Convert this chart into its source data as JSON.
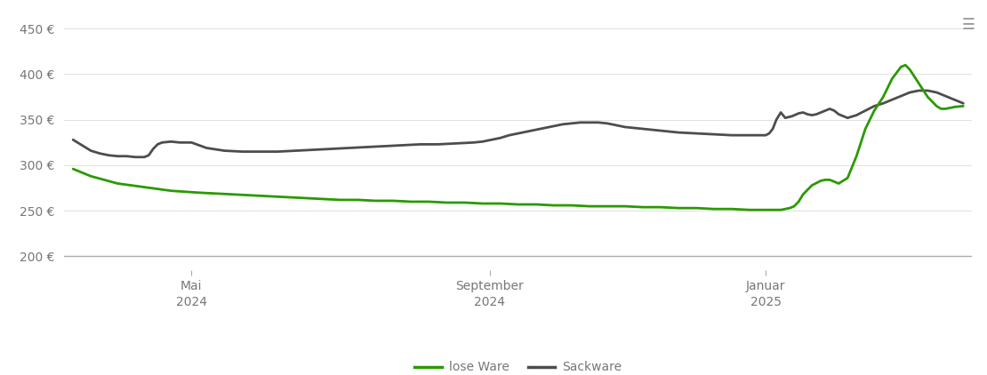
{
  "background_color": "#ffffff",
  "grid_color": "#e0e0e0",
  "axis_line_color": "#aaaaaa",
  "yticks": [
    200,
    250,
    300,
    350,
    400,
    450
  ],
  "ylabel_format": "{} €",
  "xtick_labels": [
    "Mai\n2024",
    "September\n2024",
    "Januar\n2025"
  ],
  "xtick_positions": [
    0.133,
    0.468,
    0.778
  ],
  "legend_labels": [
    "lose Ware",
    "Sackware"
  ],
  "legend_colors": [
    "#2a9a00",
    "#4d4d4d"
  ],
  "line_width": 2.0,
  "lose_ware_x": [
    0.0,
    0.01,
    0.02,
    0.035,
    0.05,
    0.065,
    0.08,
    0.095,
    0.11,
    0.125,
    0.14,
    0.16,
    0.18,
    0.2,
    0.22,
    0.24,
    0.26,
    0.28,
    0.3,
    0.32,
    0.34,
    0.36,
    0.38,
    0.4,
    0.42,
    0.44,
    0.46,
    0.48,
    0.5,
    0.52,
    0.54,
    0.56,
    0.58,
    0.6,
    0.62,
    0.64,
    0.66,
    0.68,
    0.7,
    0.72,
    0.74,
    0.76,
    0.77,
    0.775,
    0.778,
    0.78,
    0.782,
    0.785,
    0.79,
    0.795,
    0.8,
    0.805,
    0.81,
    0.815,
    0.82,
    0.83,
    0.84,
    0.845,
    0.85,
    0.855,
    0.86,
    0.87,
    0.88,
    0.89,
    0.9,
    0.91,
    0.92,
    0.93,
    0.935,
    0.94,
    0.95,
    0.96,
    0.97,
    0.975,
    0.98,
    0.985,
    0.99,
    1.0
  ],
  "lose_ware_y": [
    296,
    292,
    288,
    284,
    280,
    278,
    276,
    274,
    272,
    271,
    270,
    269,
    268,
    267,
    266,
    265,
    264,
    263,
    262,
    262,
    261,
    261,
    260,
    260,
    259,
    259,
    258,
    258,
    257,
    257,
    256,
    256,
    255,
    255,
    255,
    254,
    254,
    253,
    253,
    252,
    252,
    251,
    251,
    251,
    251,
    251,
    251,
    251,
    251,
    251,
    252,
    253,
    255,
    260,
    268,
    278,
    283,
    284,
    284,
    282,
    280,
    286,
    310,
    340,
    360,
    375,
    395,
    408,
    410,
    405,
    390,
    375,
    365,
    362,
    362,
    363,
    364,
    365
  ],
  "sackware_x": [
    0.0,
    0.005,
    0.01,
    0.015,
    0.02,
    0.03,
    0.04,
    0.05,
    0.06,
    0.07,
    0.08,
    0.085,
    0.09,
    0.095,
    0.1,
    0.11,
    0.12,
    0.133,
    0.15,
    0.17,
    0.19,
    0.21,
    0.23,
    0.25,
    0.27,
    0.29,
    0.31,
    0.33,
    0.35,
    0.37,
    0.39,
    0.41,
    0.43,
    0.45,
    0.46,
    0.47,
    0.48,
    0.49,
    0.5,
    0.51,
    0.52,
    0.53,
    0.54,
    0.55,
    0.56,
    0.57,
    0.58,
    0.59,
    0.6,
    0.62,
    0.64,
    0.66,
    0.68,
    0.7,
    0.72,
    0.74,
    0.76,
    0.77,
    0.778,
    0.782,
    0.786,
    0.79,
    0.795,
    0.8,
    0.808,
    0.815,
    0.82,
    0.825,
    0.83,
    0.835,
    0.84,
    0.845,
    0.85,
    0.855,
    0.86,
    0.865,
    0.87,
    0.88,
    0.89,
    0.9,
    0.91,
    0.92,
    0.93,
    0.94,
    0.95,
    0.96,
    0.97,
    0.975,
    0.98,
    0.985,
    0.99,
    1.0
  ],
  "sackware_y": [
    328,
    325,
    322,
    319,
    316,
    313,
    311,
    310,
    310,
    309,
    309,
    311,
    318,
    323,
    325,
    326,
    325,
    325,
    319,
    316,
    315,
    315,
    315,
    316,
    317,
    318,
    319,
    320,
    321,
    322,
    323,
    323,
    324,
    325,
    326,
    328,
    330,
    333,
    335,
    337,
    339,
    341,
    343,
    345,
    346,
    347,
    347,
    347,
    346,
    342,
    340,
    338,
    336,
    335,
    334,
    333,
    333,
    333,
    333,
    335,
    340,
    350,
    358,
    352,
    354,
    357,
    358,
    356,
    355,
    356,
    358,
    360,
    362,
    360,
    356,
    354,
    352,
    355,
    360,
    365,
    368,
    372,
    376,
    380,
    382,
    382,
    380,
    378,
    376,
    374,
    372,
    368
  ],
  "xlim": [
    -0.01,
    1.01
  ],
  "ylim": [
    185,
    465
  ],
  "figsize": [
    11.1,
    4.22
  ],
  "dpi": 100
}
